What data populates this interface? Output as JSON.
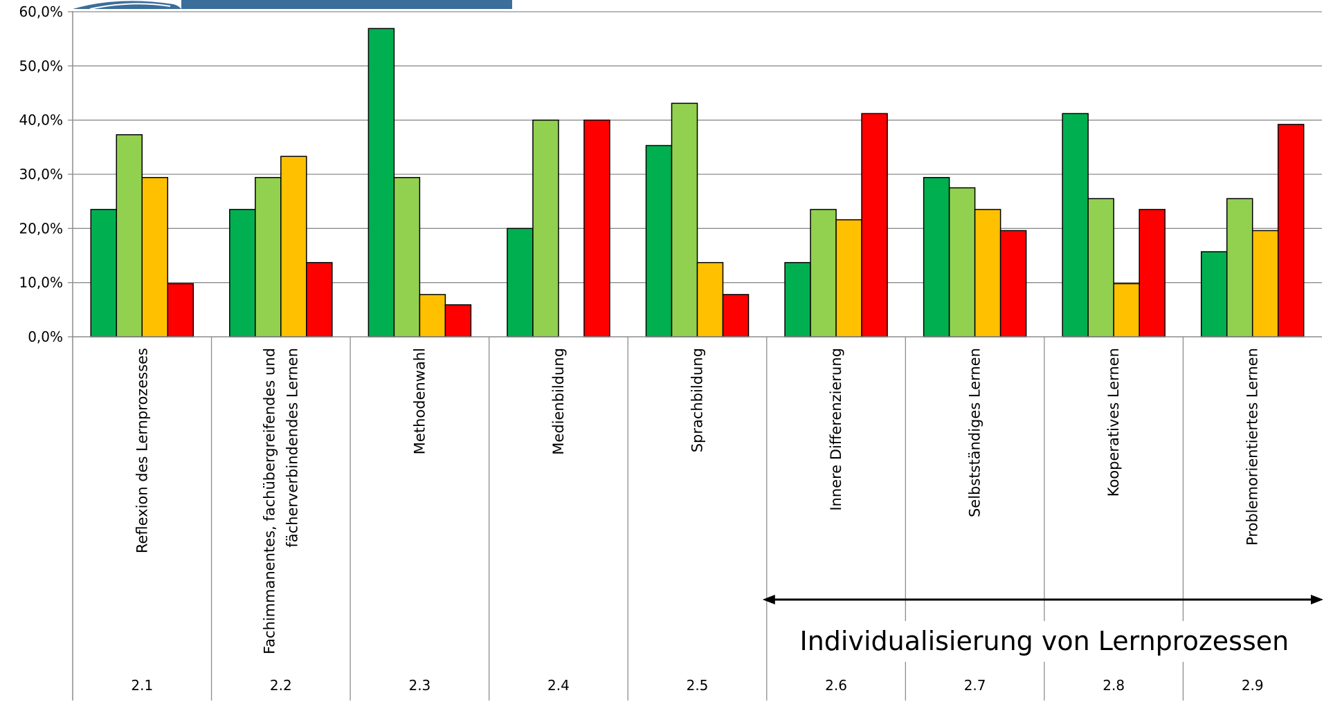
{
  "chart_data": {
    "type": "bar",
    "title": "",
    "xlabel": "",
    "ylabel": "",
    "ylim": [
      0,
      60
    ],
    "y_ticks": [
      "0,0%",
      "10,0%",
      "20,0%",
      "30,0%",
      "40,0%",
      "50,0%",
      "60,0%"
    ],
    "y_tick_values": [
      0,
      10,
      20,
      30,
      40,
      50,
      60
    ],
    "grid": true,
    "legend": "none",
    "categories": [
      {
        "label_lines": [
          "Reflexion des Lernprozesses"
        ],
        "code": "2.1"
      },
      {
        "label_lines": [
          "Fachimmanentes, fachübergreifendes und",
          "fächerverbindendes Lernen"
        ],
        "code": "2.2"
      },
      {
        "label_lines": [
          "Methodenwahl"
        ],
        "code": "2.3"
      },
      {
        "label_lines": [
          "Medienbildung"
        ],
        "code": "2.4"
      },
      {
        "label_lines": [
          "Sprachbildung"
        ],
        "code": "2.5"
      },
      {
        "label_lines": [
          "Innere Differenzierung"
        ],
        "code": "2.6"
      },
      {
        "label_lines": [
          "Selbstständiges Lernen"
        ],
        "code": "2.7"
      },
      {
        "label_lines": [
          "Kooperatives Lernen"
        ],
        "code": "2.8"
      },
      {
        "label_lines": [
          "Problemorientiertes Lernen"
        ],
        "code": "2.9"
      }
    ],
    "series": [
      {
        "color": "#00B050",
        "values": [
          23.5,
          23.5,
          56.9,
          20.0,
          35.3,
          13.7,
          29.4,
          41.2,
          15.7
        ]
      },
      {
        "color": "#92D050",
        "values": [
          37.3,
          29.4,
          29.4,
          40.0,
          43.1,
          23.5,
          27.5,
          25.5,
          25.5
        ]
      },
      {
        "color": "#FFC000",
        "values": [
          29.4,
          33.3,
          7.8,
          0.0,
          13.7,
          21.6,
          23.5,
          9.8,
          19.6
        ]
      },
      {
        "color": "#FF0000",
        "values": [
          9.8,
          13.7,
          5.9,
          40.0,
          7.8,
          41.2,
          19.6,
          23.5,
          39.2
        ]
      }
    ],
    "annotation": {
      "text": "Individualisierung von Lernprozessen",
      "from_category": "2.6",
      "to_category": "2.9",
      "arrow": "double-headed"
    },
    "header_banner": {
      "color": "#3B6E9A",
      "text": ""
    }
  }
}
